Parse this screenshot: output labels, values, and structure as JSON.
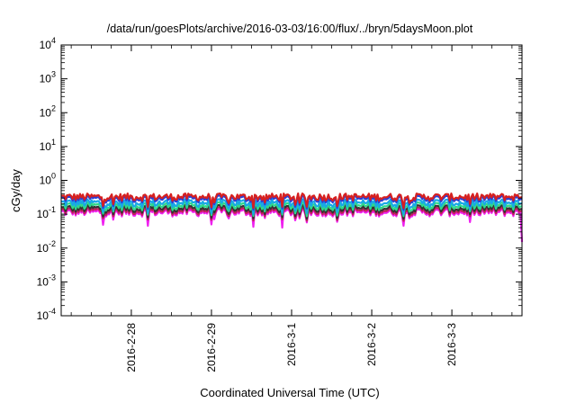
{
  "chart_data": {
    "type": "line",
    "title": "/data/run/goesPlots/archive/2016-03-03/16:00/flux/../bryn/5daysMoon.plot",
    "xlabel": "Coordinated Universal Time (UTC)",
    "ylabel": "cGy/day",
    "yscale": "log",
    "ylim": [
      0.0001,
      10000
    ],
    "xlim": [
      "2016-02-27 03:00",
      "2016-03-03 21:00"
    ],
    "yticks": [
      {
        "base": "10",
        "exp": "4"
      },
      {
        "base": "10",
        "exp": "3"
      },
      {
        "base": "10",
        "exp": "2"
      },
      {
        "base": "10",
        "exp": "1"
      },
      {
        "base": "10",
        "exp": "0"
      },
      {
        "base": "10",
        "exp": "-1"
      },
      {
        "base": "10",
        "exp": "-2"
      },
      {
        "base": "10",
        "exp": "-3"
      },
      {
        "base": "10",
        "exp": "-4"
      }
    ],
    "xticks": [
      "2016-2-28",
      "2016-2-29",
      "2016-3-1",
      "2016-3-2",
      "2016-3-3"
    ],
    "grid": false,
    "legend": "none",
    "series": [
      {
        "color": "#d62020",
        "base": 0.33,
        "amp": 0.08,
        "dip": 0.55
      },
      {
        "color": "#2a3fd6",
        "base": 0.29,
        "amp": 0.07,
        "dip": 0.55
      },
      {
        "color": "#18a8e6",
        "base": 0.22,
        "amp": 0.06,
        "dip": 0.55
      },
      {
        "color": "#2fd98a",
        "base": 0.18,
        "amp": 0.05,
        "dip": 0.6
      },
      {
        "color": "#333333",
        "base": 0.15,
        "amp": 0.04,
        "dip": 0.6
      },
      {
        "color": "#c21f5a",
        "base": 0.13,
        "amp": 0.035,
        "dip": 0.6
      },
      {
        "color": "#f020f0",
        "base": 0.115,
        "amp": 0.03,
        "dip": 0.35
      }
    ]
  }
}
